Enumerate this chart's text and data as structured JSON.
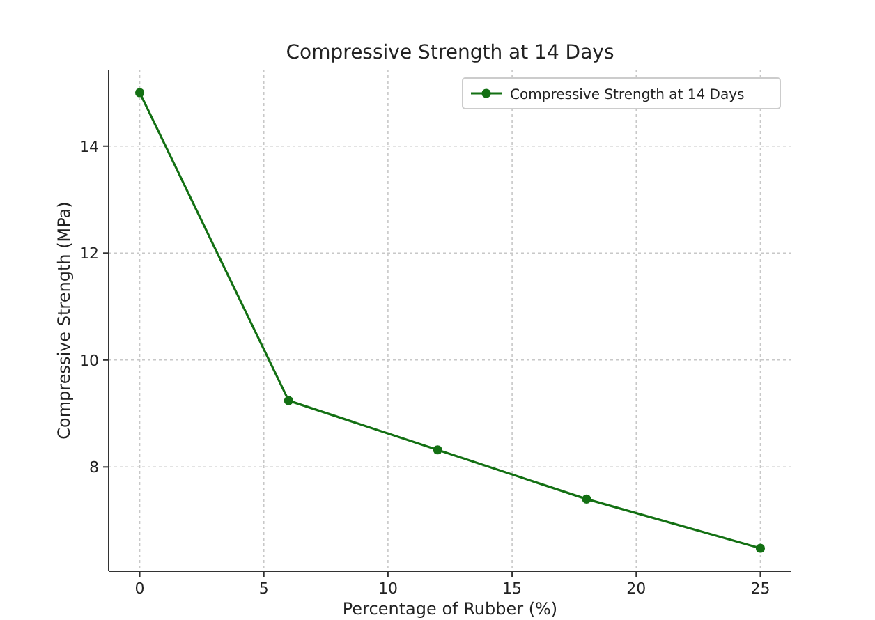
{
  "chart_data": {
    "type": "line",
    "title": "Compressive Strength at 14 Days",
    "xlabel": "Percentage of Rubber (%)",
    "ylabel": "Compressive Strength (MPa)",
    "x": [
      0,
      6,
      12,
      18,
      25
    ],
    "series": [
      {
        "name": "Compressive Strength at 14 Days",
        "color": "#137013",
        "values": [
          15.0,
          9.24,
          8.32,
          7.4,
          6.48
        ]
      }
    ],
    "xlim": [
      -1.25,
      26.25
    ],
    "xticks": [
      0,
      5,
      10,
      15,
      20,
      25
    ],
    "ylim": [
      6.05,
      15.43
    ],
    "yticks": [
      8,
      10,
      12,
      14
    ],
    "grid": true,
    "legend": "top right",
    "marker": "circle",
    "line_style": "solid"
  }
}
